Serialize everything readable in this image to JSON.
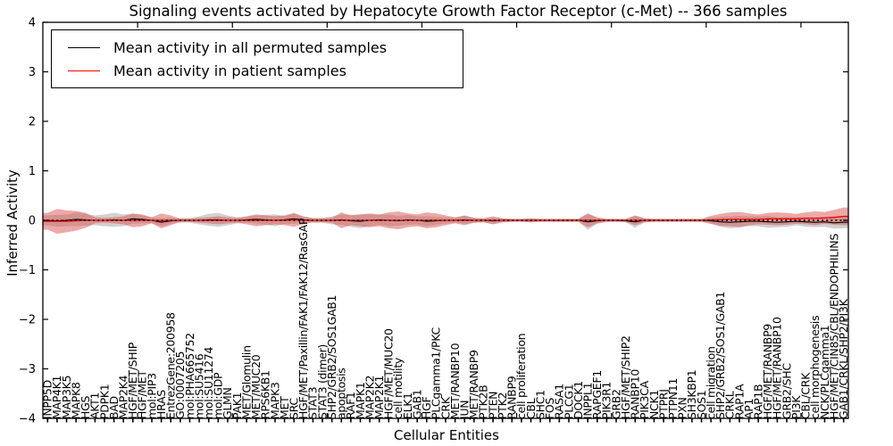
{
  "chart_data": {
    "type": "line",
    "title": "Signaling events activated by Hepatocyte Growth Factor Receptor (c-Met) -- 366 samples",
    "xlabel": "Cellular Entities",
    "ylabel": "Inferred Activity",
    "n_samples": 366,
    "ylim": [
      -4,
      4
    ],
    "yticks": [
      -4,
      -3,
      -2,
      -1,
      0,
      1,
      2,
      3,
      4
    ],
    "grid": false,
    "legend_position": "upper left",
    "colors": {
      "permuted_line": "#000000",
      "patient_line": "#ff0000",
      "permuted_band": "#999999",
      "patient_band": "#d9534f",
      "zero_line": "#000000"
    },
    "categories": [
      "INPP5D",
      "MAP4K1",
      "MAP3K5",
      "MAPK8",
      "HGS",
      "AKT1",
      "PDPK1",
      "BAD",
      "MAP2K4",
      "HGF/MET/SHIP",
      "HGF/MET",
      "mol:PIP3",
      "HRAS",
      "EntrezGene:200958",
      "GO:0007205",
      "mol:PHA665752",
      "mol:SU5416",
      "mol:SU11274",
      "mol:GDP",
      "GLMN",
      "PAK1",
      "MET/Glomulin",
      "MET/MUC20",
      "RPS6KB1",
      "MAPK3",
      "MET",
      "SRC",
      "HGF/MET/Paxillin/FAK1/FAK12/RasGAP",
      "STAT3",
      "STAT3 (dimer)",
      "SHP2/GRB2/SOS1GAB1",
      "apoptosis",
      "RAF1",
      "MAPK1",
      "MAP2K2",
      "MAP2K1",
      "HGF/MET/MUC20",
      "cell motility",
      "ELK1",
      "GAB1",
      "HGF",
      "PLCgamma1/PKC",
      "CRK",
      "MET/RANBP10",
      "JUN",
      "MET/RANBP9",
      "PTK2B",
      "PTEN",
      "PTK2",
      "RANBP9",
      "cell proliferation",
      "CBL",
      "SHC1",
      "FOS",
      "RASA1",
      "PLCG1",
      "DOCK1",
      "INPPL1",
      "RAPGEF1",
      "PIK3R1",
      "GRB2",
      "HGF/MET/SHIP2",
      "RANBP10",
      "PIK3CA",
      "NCK1",
      "PTPRJ",
      "PTPN11",
      "PXN",
      "SH3KBP1",
      "SOS1",
      "cell migration",
      "SHP2/GRB2/SOS1/GAB1",
      "CRKL",
      "RAP1A",
      "AP1",
      "RAP1B",
      "HGF/MET/RANBP9",
      "HGF/MET/RANBP10",
      "GRB2/SHC",
      "PI3K",
      "CBL/CRK",
      "cell morphogenesis",
      "NCK/PLCgamma1",
      "HGF/MET/CIN85/CBL/ENDOPHILINS",
      "GAB1/CRKL/SHP2/PI3K"
    ],
    "series": [
      {
        "name": "Mean activity in all permuted samples",
        "color": "#000000",
        "values": [
          0.0,
          -0.01,
          0.0,
          0.02,
          0.01,
          0.0,
          0.0,
          0.01,
          0.0,
          0.03,
          0.02,
          0.0,
          -0.04,
          -0.01,
          0.0,
          0.0,
          0.0,
          0.01,
          0.01,
          0.0,
          0.0,
          0.01,
          0.02,
          0.01,
          0.0,
          0.01,
          0.03,
          0.01,
          0.0,
          0.0,
          0.0,
          0.01,
          -0.01,
          -0.02,
          0.0,
          0.01,
          0.0,
          -0.01,
          0.01,
          0.0,
          -0.02,
          -0.01,
          0.0,
          0.0,
          0.01,
          0.0,
          0.0,
          -0.01,
          0.0,
          0.0,
          0.0,
          0.0,
          0.0,
          0.0,
          0.0,
          0.0,
          0.0,
          -0.03,
          -0.01,
          0.0,
          0.0,
          -0.01,
          -0.03,
          0.0,
          0.0,
          0.0,
          0.0,
          0.0,
          0.0,
          0.0,
          -0.01,
          -0.03,
          -0.04,
          -0.03,
          -0.02,
          -0.02,
          -0.03,
          -0.04,
          -0.03,
          -0.02,
          -0.03,
          -0.04,
          -0.03,
          -0.05,
          -0.04
        ]
      },
      {
        "name": "Mean activity in patient samples",
        "color": "#ff0000",
        "values": [
          -0.02,
          -0.02,
          -0.02,
          -0.01,
          0.0,
          0.0,
          0.0,
          0.0,
          0.0,
          0.0,
          0.0,
          0.0,
          -0.01,
          0.0,
          0.0,
          0.0,
          0.0,
          0.0,
          0.0,
          0.0,
          0.0,
          0.0,
          0.0,
          0.0,
          0.0,
          0.0,
          0.01,
          0.0,
          0.0,
          0.0,
          0.0,
          0.0,
          0.0,
          0.0,
          0.0,
          0.0,
          0.0,
          0.0,
          0.0,
          0.0,
          0.0,
          0.0,
          0.0,
          0.0,
          0.0,
          0.0,
          0.0,
          0.0,
          0.0,
          0.0,
          0.0,
          0.0,
          0.0,
          0.0,
          0.0,
          0.0,
          0.0,
          0.0,
          0.0,
          0.0,
          0.0,
          0.0,
          0.0,
          0.0,
          0.0,
          0.0,
          0.0,
          0.0,
          0.0,
          0.0,
          0.01,
          0.01,
          0.02,
          0.02,
          0.02,
          0.02,
          0.03,
          0.03,
          0.03,
          0.03,
          0.04,
          0.04,
          0.05,
          0.06,
          0.08
        ]
      },
      {
        "name": "permuted_band_halfwidth",
        "color": "#999999",
        "values": [
          0.1,
          0.12,
          0.12,
          0.14,
          0.12,
          0.1,
          0.12,
          0.14,
          0.12,
          0.1,
          0.08,
          0.06,
          0.08,
          0.06,
          0.05,
          0.05,
          0.08,
          0.12,
          0.14,
          0.1,
          0.06,
          0.06,
          0.08,
          0.1,
          0.12,
          0.08,
          0.1,
          0.06,
          0.05,
          0.05,
          0.08,
          0.1,
          0.12,
          0.14,
          0.12,
          0.1,
          0.12,
          0.1,
          0.1,
          0.08,
          0.1,
          0.08,
          0.06,
          0.05,
          0.08,
          0.05,
          0.04,
          0.06,
          0.04,
          0.03,
          0.03,
          0.04,
          0.03,
          0.03,
          0.03,
          0.03,
          0.03,
          0.16,
          0.06,
          0.03,
          0.03,
          0.03,
          0.12,
          0.04,
          0.03,
          0.03,
          0.03,
          0.03,
          0.03,
          0.03,
          0.06,
          0.1,
          0.12,
          0.12,
          0.1,
          0.1,
          0.12,
          0.1,
          0.1,
          0.08,
          0.1,
          0.1,
          0.1,
          0.12,
          0.12
        ]
      },
      {
        "name": "patient_band_halfwidth",
        "color": "#d9534f",
        "values": [
          0.17,
          0.25,
          0.22,
          0.2,
          0.15,
          0.06,
          0.05,
          0.06,
          0.08,
          0.14,
          0.12,
          0.06,
          0.15,
          0.1,
          0.03,
          0.03,
          0.05,
          0.06,
          0.08,
          0.06,
          0.05,
          0.08,
          0.12,
          0.1,
          0.08,
          0.1,
          0.14,
          0.08,
          0.04,
          0.04,
          0.05,
          0.16,
          0.1,
          0.12,
          0.14,
          0.12,
          0.16,
          0.18,
          0.14,
          0.12,
          0.16,
          0.14,
          0.1,
          0.06,
          0.1,
          0.05,
          0.04,
          0.08,
          0.04,
          0.03,
          0.03,
          0.04,
          0.03,
          0.03,
          0.03,
          0.03,
          0.03,
          0.14,
          0.06,
          0.03,
          0.03,
          0.03,
          0.1,
          0.04,
          0.03,
          0.03,
          0.03,
          0.03,
          0.03,
          0.03,
          0.08,
          0.12,
          0.14,
          0.15,
          0.12,
          0.1,
          0.12,
          0.13,
          0.12,
          0.1,
          0.12,
          0.14,
          0.12,
          0.15,
          0.18
        ]
      }
    ]
  }
}
